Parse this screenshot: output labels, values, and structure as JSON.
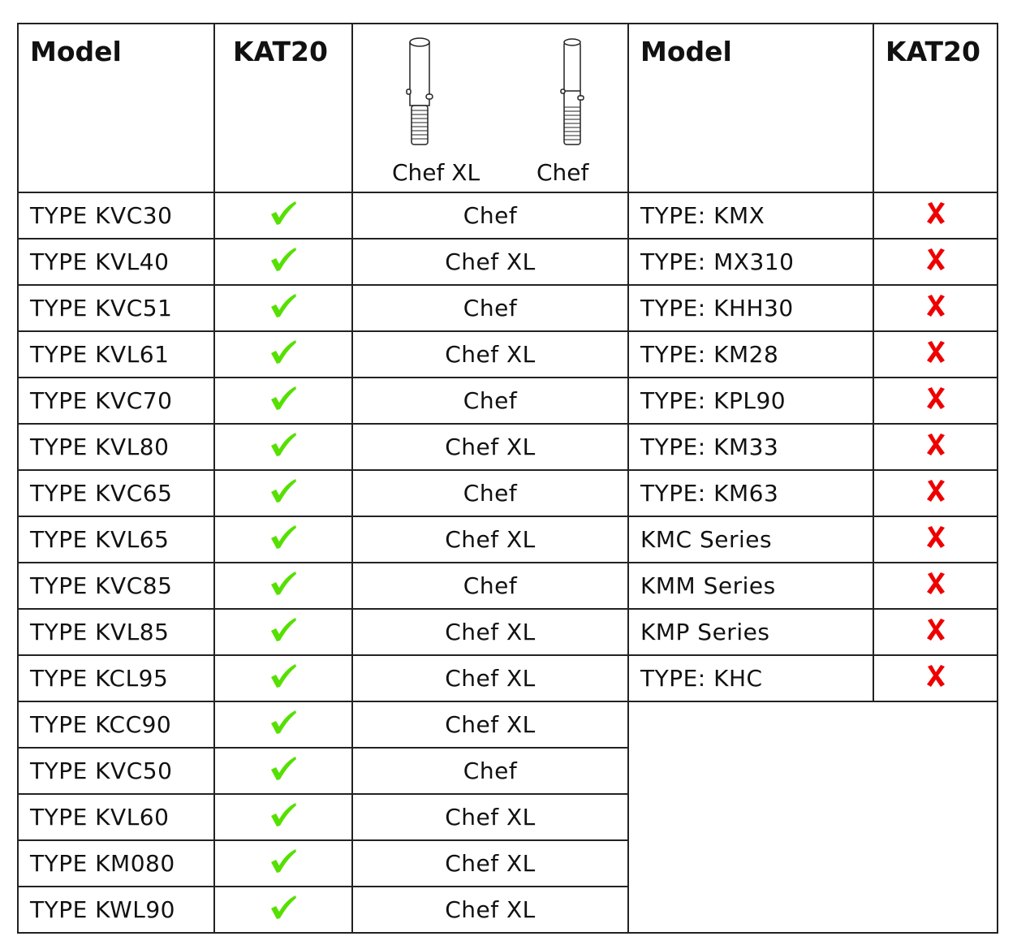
{
  "header": {
    "model_left": "Model",
    "kat_left": "KAT20",
    "attachment_labels": [
      "Chef XL",
      "Chef"
    ],
    "model_right": "Model",
    "kat_right": "KAT20"
  },
  "colors": {
    "check": "#55e000",
    "cross": "#ee0000"
  },
  "left_rows": [
    {
      "model": "TYPE KVC30",
      "kat20": "check-icon",
      "attachment": "Chef"
    },
    {
      "model": "TYPE KVL40",
      "kat20": "check-icon",
      "attachment": "Chef XL"
    },
    {
      "model": "TYPE KVC51",
      "kat20": "check-icon",
      "attachment": "Chef"
    },
    {
      "model": "TYPE KVL61",
      "kat20": "check-icon",
      "attachment": "Chef XL"
    },
    {
      "model": "TYPE KVC70",
      "kat20": "check-icon",
      "attachment": "Chef"
    },
    {
      "model": "TYPE KVL80",
      "kat20": "check-icon",
      "attachment": "Chef XL"
    },
    {
      "model": "TYPE KVC65",
      "kat20": "check-icon",
      "attachment": "Chef"
    },
    {
      "model": "TYPE KVL65",
      "kat20": "check-icon",
      "attachment": "Chef XL"
    },
    {
      "model": "TYPE KVC85",
      "kat20": "check-icon",
      "attachment": "Chef"
    },
    {
      "model": "TYPE KVL85",
      "kat20": "check-icon",
      "attachment": "Chef XL"
    },
    {
      "model": "TYPE KCL95",
      "kat20": "check-icon",
      "attachment": "Chef XL"
    },
    {
      "model": "TYPE KCC90",
      "kat20": "check-icon",
      "attachment": "Chef XL"
    },
    {
      "model": "TYPE KVC50",
      "kat20": "check-icon",
      "attachment": "Chef"
    },
    {
      "model": "TYPE KVL60",
      "kat20": "check-icon",
      "attachment": "Chef XL"
    },
    {
      "model": "TYPE KM080",
      "kat20": "check-icon",
      "attachment": "Chef XL"
    },
    {
      "model": "TYPE KWL90",
      "kat20": "check-icon",
      "attachment": "Chef XL"
    }
  ],
  "right_rows": [
    {
      "model": "TYPE: KMX",
      "kat20": "cross-icon"
    },
    {
      "model": "TYPE: MX310",
      "kat20": "cross-icon"
    },
    {
      "model": "TYPE: KHH30",
      "kat20": "cross-icon"
    },
    {
      "model": "TYPE: KM28",
      "kat20": "cross-icon"
    },
    {
      "model": "TYPE: KPL90",
      "kat20": "cross-icon"
    },
    {
      "model": "TYPE: KM33",
      "kat20": "cross-icon"
    },
    {
      "model": "TYPE: KM63",
      "kat20": "cross-icon"
    },
    {
      "model": "KMC Series",
      "kat20": "cross-icon"
    },
    {
      "model": "KMM Series",
      "kat20": "cross-icon"
    },
    {
      "model": "KMP Series",
      "kat20": "cross-icon"
    },
    {
      "model": "TYPE: KHC",
      "kat20": "cross-icon"
    }
  ]
}
